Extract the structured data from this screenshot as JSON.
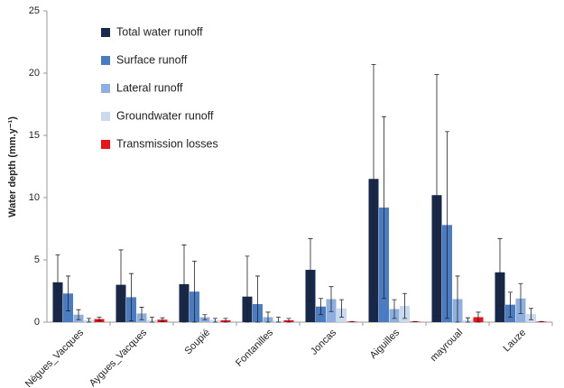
{
  "chart_data": {
    "type": "bar",
    "y_label": "Water depth (mm.y⁻¹)",
    "categories": [
      "Nègues_Vacques",
      "Aygues_Vacques",
      "Soupié",
      "Fontanilles",
      "Joncas",
      "Aiguilles",
      "mayroual",
      "Lauze"
    ],
    "series": [
      {
        "name": "Total water runoff",
        "color": "#17284a",
        "values": [
          3.2,
          3.0,
          3.05,
          2.05,
          4.2,
          11.5,
          10.2,
          4.0
        ],
        "errors": [
          2.2,
          2.8,
          3.15,
          3.25,
          2.5,
          9.2,
          9.7,
          2.7
        ]
      },
      {
        "name": "Surface runoff",
        "color": "#4a7cc4",
        "values": [
          2.3,
          2.0,
          2.45,
          1.45,
          1.25,
          9.2,
          7.8,
          1.4
        ],
        "errors": [
          1.4,
          1.9,
          2.45,
          2.25,
          0.65,
          7.3,
          7.5,
          1.0
        ]
      },
      {
        "name": "Lateral runoff",
        "color": "#8fb0de",
        "values": [
          0.6,
          0.7,
          0.4,
          0.4,
          1.85,
          1.05,
          1.85,
          1.9
        ],
        "errors": [
          0.4,
          0.5,
          0.2,
          0.4,
          1.0,
          0.75,
          1.85,
          1.2
        ]
      },
      {
        "name": "Groundwater runoff",
        "color": "#c8d9f0",
        "values": [
          0.15,
          0.15,
          0.15,
          0.1,
          1.1,
          1.3,
          0.15,
          0.65
        ],
        "errors": [
          0.15,
          0.25,
          0.15,
          0.3,
          0.7,
          1.0,
          0.2,
          0.45
        ]
      },
      {
        "name": "Transmission losses",
        "color": "#e8141a",
        "values": [
          0.25,
          0.2,
          0.15,
          0.15,
          0.05,
          0.05,
          0.4,
          0.05
        ],
        "errors": [
          0.15,
          0.15,
          0.15,
          0.15,
          0.0,
          0.0,
          0.4,
          0.0
        ]
      }
    ],
    "ylim": [
      0,
      25
    ],
    "yticks": [
      0,
      5,
      10,
      15,
      20,
      25
    ],
    "grid": false,
    "legend": "upper-left"
  }
}
